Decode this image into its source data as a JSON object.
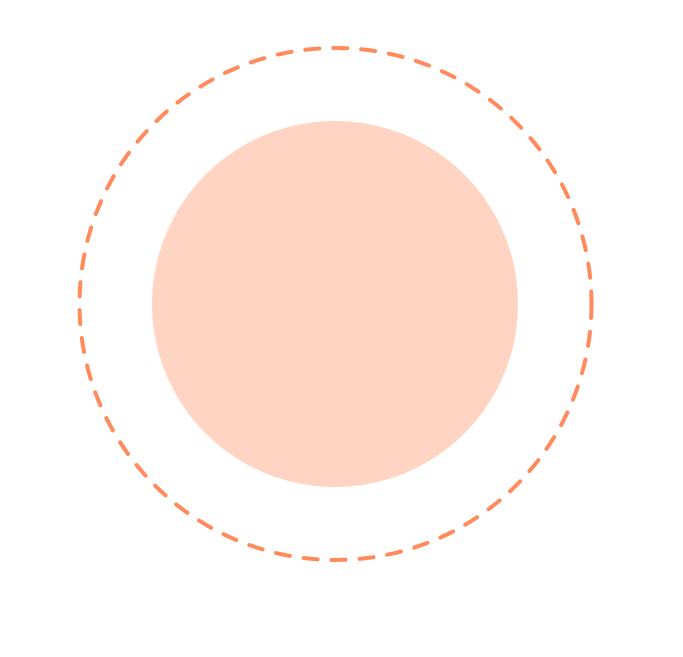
{
  "colors": {
    "background": "#ffffff",
    "inner_fill": "#ffd4c2",
    "outer_dashed_stroke": "#ff8a5b"
  }
}
